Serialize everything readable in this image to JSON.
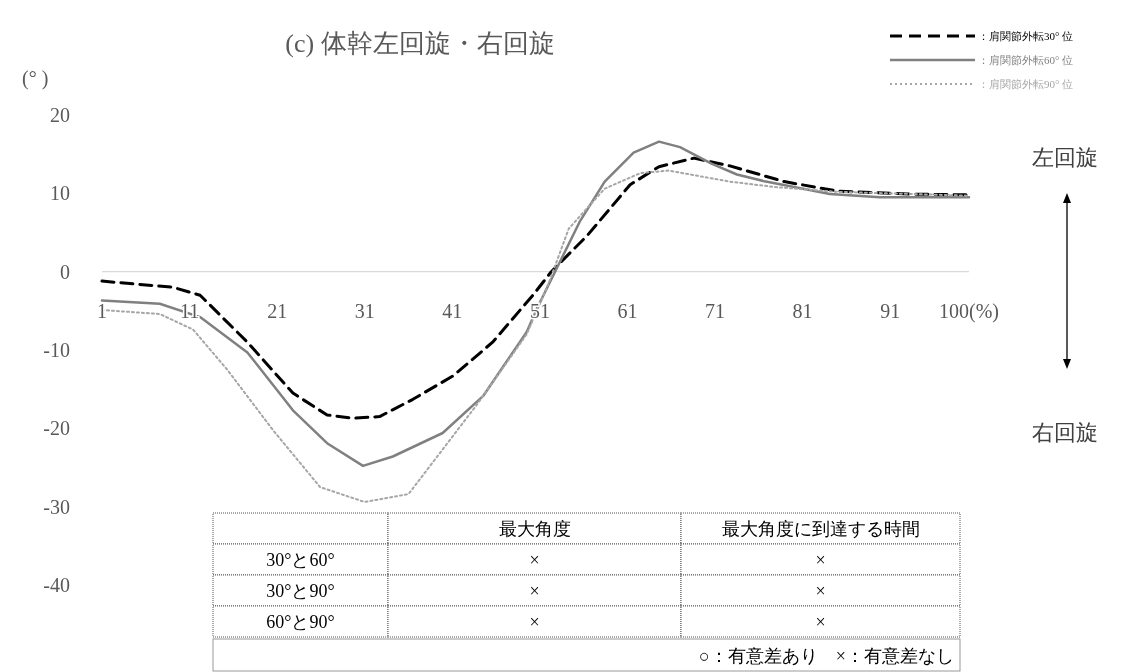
{
  "chart_data": {
    "type": "line",
    "title": "(c) 体幹左回旋・右回旋",
    "ylabel": "(° )",
    "xlim": [
      1,
      100
    ],
    "xticks": [
      1,
      11,
      21,
      31,
      41,
      51,
      61,
      71,
      81,
      91,
      {
        "value": 100,
        "label": "100(%)"
      }
    ],
    "ylim": [
      -40,
      20
    ],
    "yticks": [
      20,
      10,
      0,
      -10,
      -20,
      -30,
      -40
    ],
    "legend": "top right",
    "series": [
      {
        "name": "：肩関節外転30° 位",
        "color": "#000000",
        "line_style": "dashed",
        "x": [
          1,
          9.1,
          12.2,
          17.6,
          22.8,
          26.7,
          29.7,
          32.7,
          36.5,
          41.1,
          45.6,
          50.2,
          52.3,
          56.4,
          61.3,
          64.6,
          68.6,
          72.7,
          78.9,
          84.9,
          93.1,
          100
        ],
        "values": [
          -1.2,
          -2.0,
          -3.0,
          -9.0,
          -15.5,
          -18.3,
          -18.7,
          -18.5,
          -16.3,
          -13.3,
          -9.0,
          -3.0,
          0,
          4.6,
          11.1,
          13.4,
          14.5,
          13.5,
          11.5,
          10.3,
          9.9,
          9.8
        ]
      },
      {
        "name": "：肩関節外転60° 位",
        "color": "#808080",
        "line_style": "solid",
        "x": [
          1,
          7.6,
          12.2,
          17.6,
          22.8,
          26.7,
          30.8,
          34.2,
          39.9,
          44.5,
          49.5,
          50.7,
          55.6,
          58.4,
          61.7,
          64.6,
          67,
          70.6,
          73.5,
          76.8,
          84.1,
          89.8,
          100
        ],
        "values": [
          -3.7,
          -4.1,
          -5.8,
          -10.3,
          -17.7,
          -21.9,
          -24.8,
          -23.6,
          -20.6,
          -15.9,
          -7.7,
          -4.6,
          6.5,
          11.5,
          15.2,
          16.6,
          15.9,
          13.8,
          12.4,
          11.5,
          9.9,
          9.5,
          9.5
        ]
      },
      {
        "name": "：肩関節外転90° 位",
        "color": "#a6a6a6",
        "line_style": "dotted",
        "x": [
          1,
          7.6,
          11.4,
          15.3,
          20.5,
          25.9,
          31,
          36,
          39,
          43.8,
          49.5,
          52,
          54.3,
          58.4,
          62.5,
          65.7,
          72.7,
          77.9,
          84.9,
          100
        ],
        "values": [
          -4.9,
          -5.4,
          -7.4,
          -12.5,
          -20.2,
          -27.5,
          -29.4,
          -28.4,
          -24,
          -17,
          -8,
          -1.5,
          5.5,
          10.6,
          12.6,
          12.9,
          11.5,
          10.8,
          10.2,
          9.7
        ]
      }
    ],
    "annotations": [
      "左回旋",
      "右回旋",
      "最大角度",
      "最大角度に到達する時間",
      "30°と60°",
      "×",
      "×",
      "30°と90°",
      "×",
      "×",
      "60°と90°",
      "×",
      "×",
      "○：有意差あり　×：有意差なし"
    ]
  }
}
